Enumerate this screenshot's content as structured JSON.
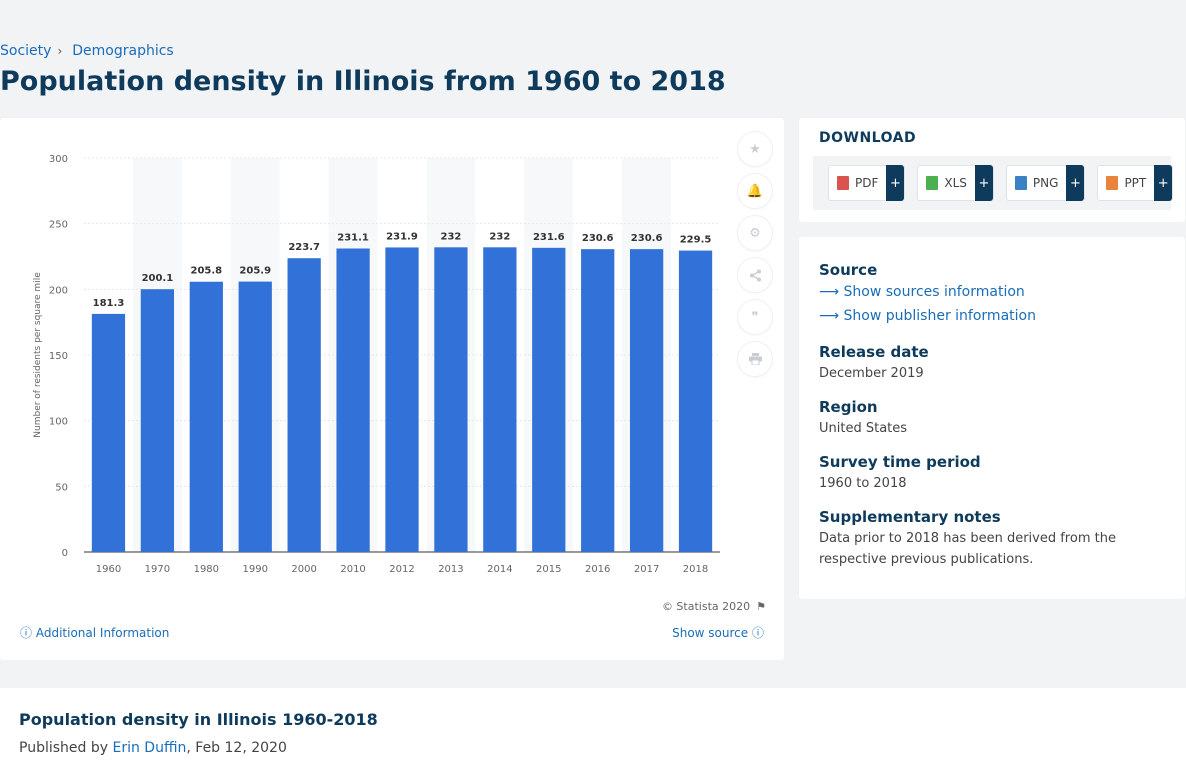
{
  "breadcrumb": {
    "item1": "Society",
    "sep": "›",
    "item2": "Demographics"
  },
  "page_title": "Population density in Illinois from 1960 to 2018",
  "chart_data": {
    "type": "bar",
    "categories": [
      "1960",
      "1970",
      "1980",
      "1990",
      "2000",
      "2010",
      "2012",
      "2013",
      "2014",
      "2015",
      "2016",
      "2017",
      "2018"
    ],
    "values": [
      181.3,
      200.1,
      205.8,
      205.9,
      223.7,
      231.1,
      231.9,
      232,
      232,
      231.6,
      230.6,
      230.6,
      229.5
    ],
    "value_labels": [
      "181.3",
      "200.1",
      "205.8",
      "205.9",
      "223.7",
      "231.1",
      "231.9",
      "232",
      "232",
      "231.6",
      "230.6",
      "230.6",
      "229.5"
    ],
    "ylabel": "Number of residents per square mile",
    "ylim": [
      0,
      300
    ],
    "yticks": [
      "0",
      "50",
      "100",
      "150",
      "200",
      "250",
      "300"
    ],
    "grid": true,
    "bar_color": "#3272d8"
  },
  "chart_footer": {
    "copyright": "© Statista 2020",
    "additional_info": "Additional Information",
    "show_source": "Show source"
  },
  "download": {
    "title": "DOWNLOAD",
    "buttons": [
      {
        "label": "PDF",
        "plus": "+",
        "icon_color": "#d9534f"
      },
      {
        "label": "XLS",
        "plus": "+",
        "icon_color": "#4caf50"
      },
      {
        "label": "PNG",
        "plus": "+",
        "icon_color": "#3b82c4"
      },
      {
        "label": "PPT",
        "plus": "+",
        "icon_color": "#e8833a"
      }
    ]
  },
  "meta": {
    "source_heading": "Source",
    "show_sources": "Show sources information",
    "show_publisher": "Show publisher information",
    "release_heading": "Release date",
    "release_value": "December 2019",
    "region_heading": "Region",
    "region_value": "United States",
    "survey_heading": "Survey time period",
    "survey_value": "1960 to 2018",
    "notes_heading": "Supplementary notes",
    "notes_value": "Data prior to 2018 has been derived from the respective previous publications."
  },
  "bottom": {
    "title": "Population density in Illinois 1960-2018",
    "published_prefix": "Published by ",
    "author": "Erin Duffin",
    "date_suffix": ", Feb 12, 2020"
  }
}
